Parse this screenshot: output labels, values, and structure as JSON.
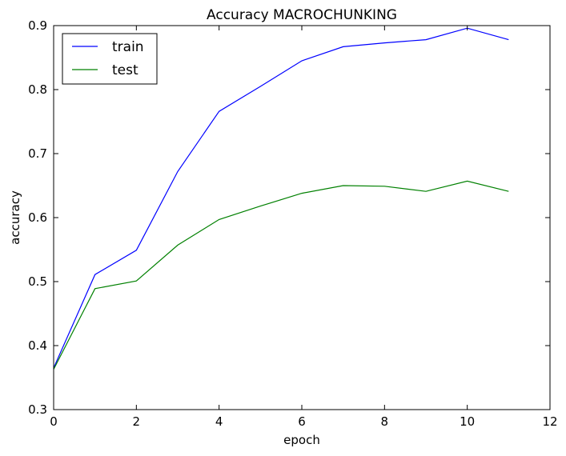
{
  "chart_data": {
    "type": "line",
    "title": "Accuracy MACROCHUNKING",
    "xlabel": "epoch",
    "ylabel": "accuracy",
    "xlim": [
      0,
      12
    ],
    "ylim": [
      0.3,
      0.9
    ],
    "xticks": [
      0,
      2,
      4,
      6,
      8,
      10,
      12
    ],
    "yticks": [
      0.3,
      0.4,
      0.5,
      0.6,
      0.7,
      0.8,
      0.9
    ],
    "grid": false,
    "legend_position": "top-left",
    "x": [
      0,
      1,
      2,
      3,
      4,
      5,
      6,
      7,
      8,
      9,
      10,
      11
    ],
    "series": [
      {
        "name": "train",
        "color": "#0000ff",
        "values": [
          0.365,
          0.511,
          0.549,
          0.672,
          0.766,
          0.805,
          0.845,
          0.867,
          0.873,
          0.878,
          0.896,
          0.878
        ]
      },
      {
        "name": "test",
        "color": "#008000",
        "values": [
          0.363,
          0.489,
          0.501,
          0.557,
          0.597,
          0.618,
          0.638,
          0.65,
          0.649,
          0.641,
          0.657,
          0.641
        ]
      }
    ]
  }
}
